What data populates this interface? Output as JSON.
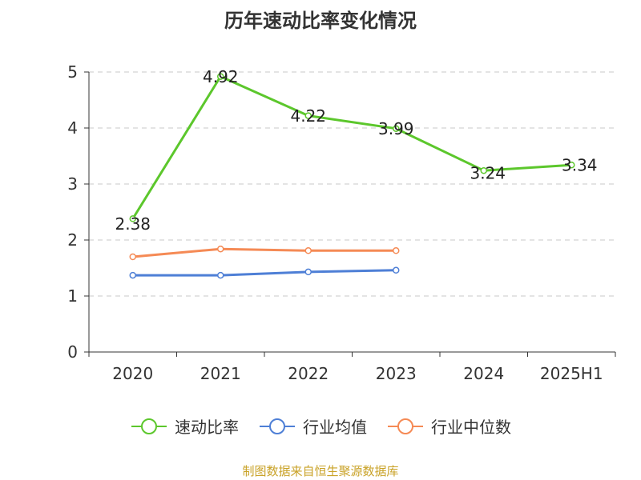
{
  "chart_data": {
    "type": "line",
    "title": "历年速动比率变化情况",
    "categories": [
      "2020",
      "2021",
      "2022",
      "2023",
      "2024",
      "2025H1"
    ],
    "ylim": [
      0,
      5
    ],
    "yticks": [
      "0",
      "1",
      "2",
      "3",
      "4",
      "5"
    ],
    "grid": "horizontal dashed",
    "legend_position": "bottom",
    "series": [
      {
        "name": "速动比率",
        "color": "#5cc72c",
        "values": [
          2.38,
          4.92,
          4.22,
          3.99,
          3.24,
          3.34
        ],
        "labels": [
          "2.38",
          "4.92",
          "4.22",
          "3.99",
          "3.24",
          "3.34"
        ]
      },
      {
        "name": "行业均值",
        "color": "#4e7fd6",
        "values": [
          1.37,
          1.37,
          1.43,
          1.46,
          null,
          null
        ]
      },
      {
        "name": "行业中位数",
        "color": "#f58a55",
        "values": [
          1.7,
          1.84,
          1.81,
          1.81,
          null,
          null
        ]
      }
    ]
  },
  "footer": {
    "source": "制图数据来自恒生聚源数据库"
  }
}
